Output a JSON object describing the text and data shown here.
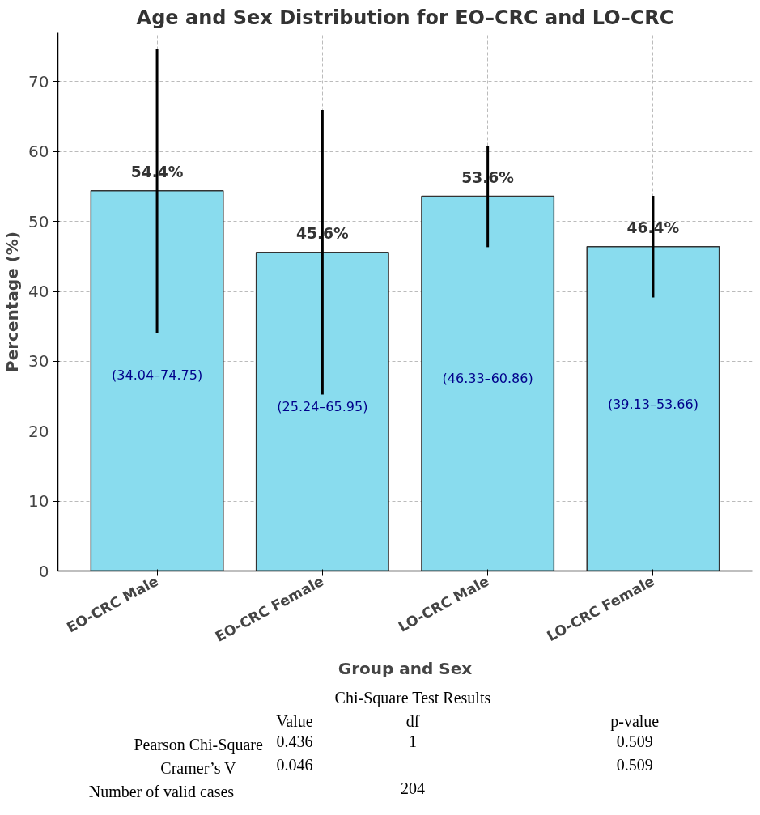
{
  "chart_data": {
    "type": "bar",
    "title": "Age and Sex Distribution for EO–CRC and LO–CRC",
    "xlabel": "Group and Sex",
    "ylabel": "Percentage (%)",
    "categories": [
      "EO-CRC Male",
      "EO-CRC Female",
      "LO-CRC Male",
      "LO-CRC Female"
    ],
    "values": [
      54.4,
      45.6,
      53.6,
      46.4
    ],
    "color": "#89dcee",
    "value_labels": [
      "54.4%",
      "45.6%",
      "53.6%",
      "46.4%"
    ],
    "errors": [
      [
        34.04,
        74.75
      ],
      [
        25.24,
        65.95
      ],
      [
        46.33,
        60.86
      ],
      [
        39.13,
        53.66
      ]
    ],
    "ylim": [
      0,
      77
    ],
    "yticks": [
      0,
      10,
      20,
      30,
      40,
      50,
      60,
      70
    ],
    "grid": true,
    "annotations": [
      "(34.04–74.75)",
      "(25.24–65.95)",
      "(46.33–60.86)",
      "(39.13–53.66)",
      "Chi-Square Test Results",
      "Value",
      "df",
      "p-value",
      "Pearson Chi-Square",
      "0.436",
      "1",
      "0.509",
      "Cramer’s V",
      "0.046",
      "0.509",
      "Number of valid cases",
      "204"
    ]
  }
}
